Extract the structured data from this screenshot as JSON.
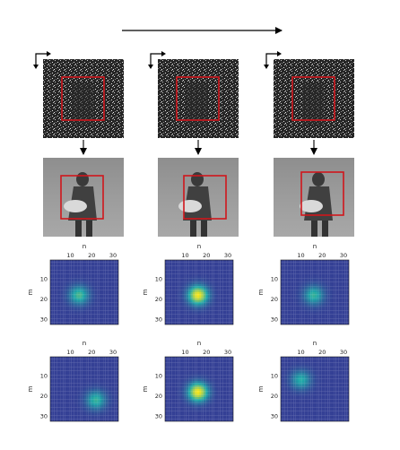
{
  "columns": [
    {
      "heatmap_top": {
        "n_ticks": [
          "10",
          "20",
          "30"
        ],
        "m_ticks": [
          "10",
          "20",
          "30"
        ],
        "peak_n": 14,
        "peak_m": 18,
        "peak_level": 0.55
      },
      "heatmap_bottom": {
        "peak_n": 22,
        "peak_m": 22,
        "peak_level": 0.5
      }
    },
    {
      "heatmap_top": {
        "peak_n": 16,
        "peak_m": 18,
        "peak_level": 1.0
      },
      "heatmap_bottom": {
        "peak_n": 16,
        "peak_m": 18,
        "peak_level": 1.0
      }
    },
    {
      "heatmap_top": {
        "peak_n": 16,
        "peak_m": 18,
        "peak_level": 0.5
      },
      "heatmap_bottom": {
        "peak_n": 10,
        "peak_m": 12,
        "peak_level": 0.45
      }
    }
  ],
  "axes": {
    "n_label": "n",
    "m_label": "m",
    "n_ticks": [
      "10",
      "20",
      "30"
    ],
    "m_ticks": [
      "10",
      "20",
      "30"
    ]
  },
  "colors": {
    "box": "#d0161c",
    "low": "#3b1f8f",
    "mid": "#1fa8a8",
    "high": "#f5e51b"
  }
}
